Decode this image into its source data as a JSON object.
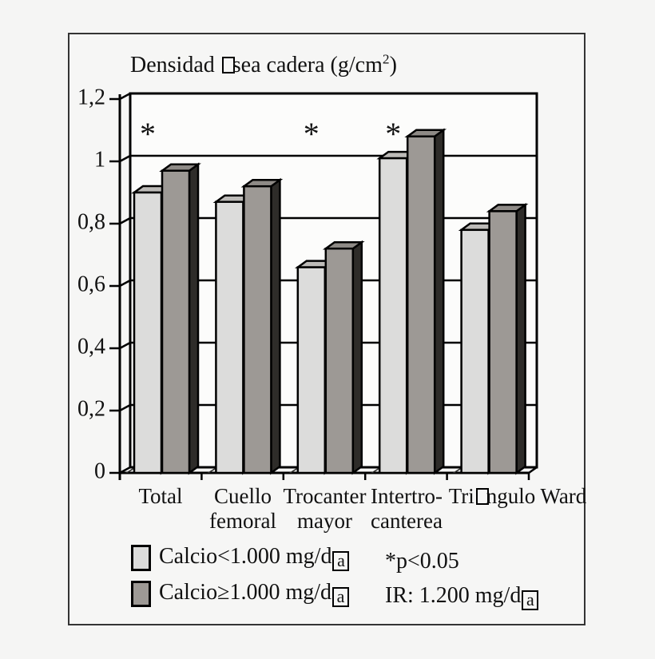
{
  "figure": {
    "background": "#f5f5f4",
    "wall_color": "#fcfcfb",
    "line_color": "#000000",
    "title_parts": [
      {
        "t": "Densidad "
      },
      {
        "box": ""
      },
      {
        "t": "sea cadera (g/cm"
      },
      {
        "sup": "2"
      },
      {
        "t": ")"
      }
    ]
  },
  "chart_data": {
    "type": "bar",
    "style": "3d-column",
    "title": "Densidad □sea cadera (g/cm²)",
    "xlabel": "",
    "ylabel": "g/cm²",
    "ylim": [
      0,
      1.2
    ],
    "yticks": [
      "0",
      "0,2",
      "0,4",
      "0,6",
      "0,8",
      "1",
      "1,2"
    ],
    "grid": true,
    "legend_position": "bottom",
    "categories": [
      "Total",
      "Cuello femoral",
      "Trocanter mayor",
      "Intertro-canterea",
      "Tri□ngulo Ward"
    ],
    "series": [
      {
        "name": "Calcio<1.000 mg/d□a",
        "color": "#dcdcdb",
        "top_color": "#bdbbb8",
        "side_color": "#3d3b38",
        "values": [
          0.9,
          0.87,
          0.66,
          1.01,
          0.78
        ]
      },
      {
        "name": "Calcio≥1.000 mg/d□a",
        "color": "#9d9995",
        "top_color": "#8e8a86",
        "side_color": "#2e2c29",
        "values": [
          0.97,
          0.92,
          0.72,
          1.08,
          0.84
        ]
      }
    ],
    "significance": [
      true,
      false,
      true,
      true,
      false
    ],
    "significance_symbol": "*",
    "annotations": [
      "*p<0.05",
      "IR: 1.200 mg/d□a"
    ]
  },
  "display": {
    "category_parts": [
      {
        "lines": [
          [
            {
              "t": "Total"
            }
          ]
        ]
      },
      {
        "lines": [
          [
            {
              "t": "Cuello"
            }
          ],
          [
            {
              "t": "femoral"
            }
          ]
        ]
      },
      {
        "lines": [
          [
            {
              "t": "Trocanter"
            }
          ],
          [
            {
              "t": "mayor"
            }
          ]
        ]
      },
      {
        "lines": [
          [
            {
              "t": "Intertro-"
            }
          ],
          [
            {
              "t": "canterea"
            }
          ]
        ]
      },
      {
        "lines": [
          [
            {
              "t": "Tri"
            },
            {
              "box": ""
            },
            {
              "t": "ngulo Ward"
            }
          ]
        ]
      }
    ]
  },
  "legend": {
    "items": [
      {
        "color": "#dcdcdb",
        "label_parts": [
          {
            "t": "Calcio<1.000 mg/d"
          },
          {
            "box": "a"
          }
        ]
      },
      {
        "color": "#9d9995",
        "label_parts": [
          {
            "t": "Calcio≥1.000 mg/d"
          },
          {
            "box": "a"
          }
        ]
      }
    ],
    "notes": [
      {
        "text": "*p<0.05",
        "parts": [
          {
            "t": "*p<0.05"
          }
        ]
      },
      {
        "text": "IR: 1.200 mg/d□a",
        "parts": [
          {
            "t": "IR: 1.200 mg/d"
          },
          {
            "box": "a"
          }
        ]
      }
    ]
  }
}
